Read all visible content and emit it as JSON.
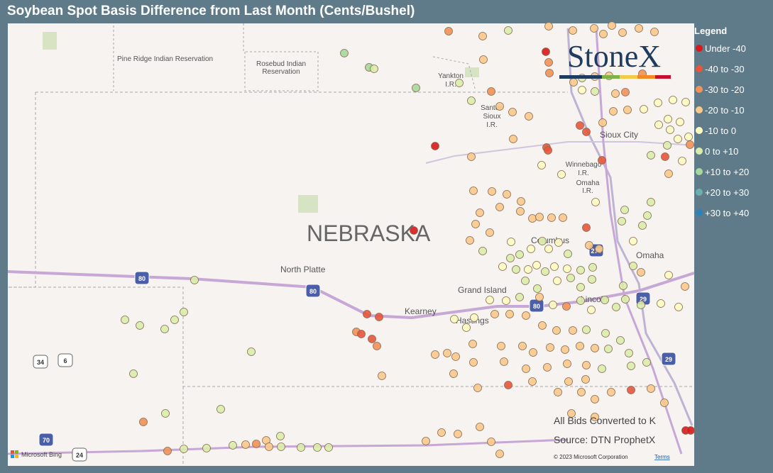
{
  "header": {
    "title": "Soybean Spot Basis Difference from Last Month (Cents/Bushel)"
  },
  "legend": {
    "title": "Legend",
    "items": [
      {
        "label": "Under -40",
        "color": "#d7191c"
      },
      {
        "label": "-40 to -30",
        "color": "#e8553b"
      },
      {
        "label": "-30 to -20",
        "color": "#f19258"
      },
      {
        "label": "-20 to -10",
        "color": "#f9c98b"
      },
      {
        "label": "-10 to 0",
        "color": "#fdfcc2"
      },
      {
        "label": "0 to +10",
        "color": "#d9edaa"
      },
      {
        "label": "+10 to +20",
        "color": "#a6d79b"
      },
      {
        "label": "+20 to +30",
        "color": "#6bb0ad"
      },
      {
        "label": "+30 to +40",
        "color": "#2b83ba"
      }
    ]
  },
  "map": {
    "labels": [
      "Pine Ridge Indian Reservation",
      "Rosebud Indian",
      "Reservation",
      "Yankton",
      "I.R.",
      "Santee",
      "Sioux",
      "I.R.",
      "Winnebago",
      "I.R.",
      "Omaha",
      "I.R.",
      "NEBRASKA",
      "North Platte",
      "Kearney",
      "Grand Island",
      "Hastings",
      "Columbus",
      "Omaha",
      "Sioux City",
      "Lincoln"
    ],
    "shields": [
      "80",
      "80",
      "80",
      "29",
      "29",
      "275",
      "34",
      "6",
      "70",
      "24"
    ]
  },
  "logo": "StoneX",
  "notes": [
    "All Bids Converted to K",
    "Source: DTN ProphetX"
  ],
  "attribution": {
    "bing": "Microsoft Bing",
    "copyright": "© 2023 Microsoft Corporation",
    "terms": "Terms"
  }
}
